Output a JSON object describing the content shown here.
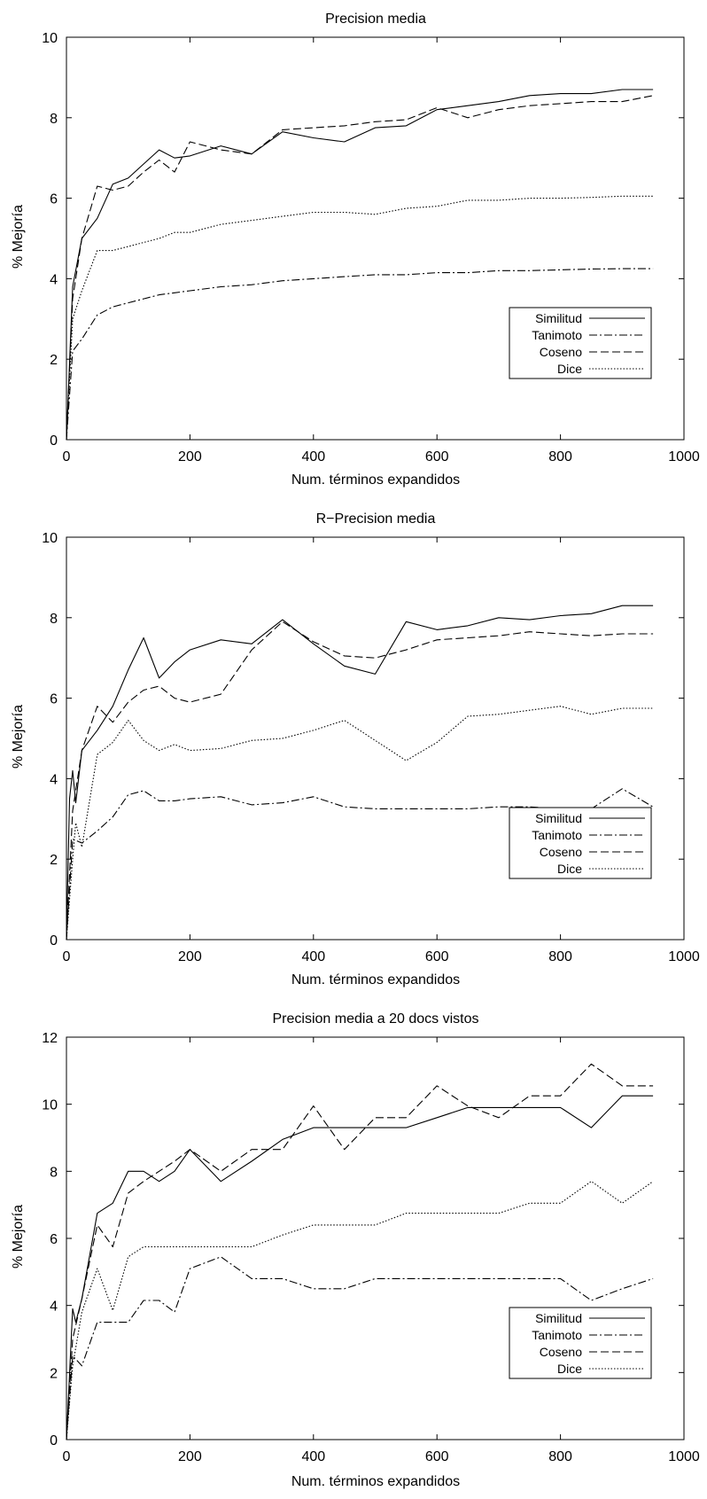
{
  "chart_data": [
    {
      "type": "line",
      "title": "Precision media",
      "xlabel": "Num. términos expandidos",
      "ylabel": "% Mejoría",
      "xlim": [
        0,
        1000
      ],
      "ylim": [
        0,
        10
      ],
      "xticks": [
        0,
        200,
        400,
        600,
        800,
        1000
      ],
      "yticks": [
        0,
        2,
        4,
        6,
        8,
        10
      ],
      "legend_position": "right",
      "series": [
        {
          "name": "Similitud",
          "style": "solid",
          "x": [
            0,
            10,
            25,
            50,
            75,
            100,
            125,
            150,
            175,
            200,
            250,
            300,
            350,
            400,
            450,
            500,
            550,
            600,
            650,
            700,
            750,
            800,
            850,
            900,
            950
          ],
          "y": [
            0,
            3.8,
            5.0,
            5.5,
            6.35,
            6.5,
            6.85,
            7.2,
            7.0,
            7.05,
            7.3,
            7.1,
            7.65,
            7.5,
            7.4,
            7.75,
            7.8,
            8.2,
            8.3,
            8.4,
            8.55,
            8.6,
            8.6,
            8.7,
            8.7
          ]
        },
        {
          "name": "Tanimoto",
          "style": "dashdot",
          "x": [
            0,
            10,
            25,
            50,
            75,
            100,
            125,
            150,
            175,
            200,
            250,
            300,
            350,
            400,
            450,
            500,
            550,
            600,
            650,
            700,
            750,
            800,
            850,
            900,
            950
          ],
          "y": [
            0,
            2.2,
            2.5,
            3.1,
            3.3,
            3.4,
            3.5,
            3.6,
            3.65,
            3.7,
            3.8,
            3.85,
            3.95,
            4.0,
            4.05,
            4.1,
            4.1,
            4.15,
            4.15,
            4.2,
            4.2,
            4.22,
            4.24,
            4.25,
            4.25
          ]
        },
        {
          "name": "Coseno",
          "style": "dashed",
          "x": [
            0,
            10,
            25,
            50,
            75,
            100,
            125,
            150,
            175,
            200,
            250,
            300,
            350,
            400,
            450,
            500,
            550,
            600,
            650,
            700,
            750,
            800,
            850,
            900,
            950
          ],
          "y": [
            0,
            3.5,
            5.0,
            6.3,
            6.2,
            6.3,
            6.65,
            6.95,
            6.65,
            7.4,
            7.2,
            7.1,
            7.7,
            7.75,
            7.8,
            7.9,
            7.95,
            8.25,
            8.0,
            8.2,
            8.3,
            8.35,
            8.4,
            8.4,
            8.55
          ]
        },
        {
          "name": "Dice",
          "style": "dotted",
          "x": [
            0,
            10,
            25,
            50,
            75,
            100,
            125,
            150,
            175,
            200,
            250,
            300,
            350,
            400,
            450,
            500,
            550,
            600,
            650,
            700,
            750,
            800,
            850,
            900,
            950
          ],
          "y": [
            0,
            3.0,
            3.7,
            4.7,
            4.7,
            4.8,
            4.9,
            5.0,
            5.15,
            5.15,
            5.35,
            5.45,
            5.55,
            5.65,
            5.65,
            5.6,
            5.75,
            5.8,
            5.95,
            5.95,
            6.0,
            6.0,
            6.02,
            6.05,
            6.05
          ]
        }
      ]
    },
    {
      "type": "line",
      "title": "R−Precision media",
      "xlabel": "Num. términos expandidos",
      "ylabel": "% Mejoría",
      "xlim": [
        0,
        1000
      ],
      "ylim": [
        0,
        10
      ],
      "xticks": [
        0,
        200,
        400,
        600,
        800,
        1000
      ],
      "yticks": [
        0,
        2,
        4,
        6,
        8,
        10
      ],
      "legend_position": "right",
      "series": [
        {
          "name": "Similitud",
          "style": "solid",
          "x": [
            0,
            5,
            10,
            15,
            25,
            50,
            75,
            100,
            125,
            150,
            175,
            200,
            250,
            300,
            350,
            400,
            450,
            500,
            550,
            600,
            650,
            700,
            750,
            800,
            850,
            900,
            950
          ],
          "y": [
            0,
            3.5,
            4.2,
            3.4,
            4.7,
            5.2,
            5.8,
            6.7,
            7.5,
            6.5,
            6.9,
            7.2,
            7.45,
            7.35,
            7.95,
            7.35,
            6.8,
            6.6,
            7.9,
            7.7,
            7.8,
            8.0,
            7.95,
            8.05,
            8.1,
            8.3,
            8.3
          ]
        },
        {
          "name": "Tanimoto",
          "style": "dashdot",
          "x": [
            0,
            10,
            25,
            50,
            75,
            100,
            125,
            150,
            175,
            200,
            250,
            300,
            350,
            400,
            450,
            500,
            550,
            600,
            650,
            700,
            750,
            800,
            850,
            900,
            950
          ],
          "y": [
            0,
            2.5,
            2.4,
            2.7,
            3.05,
            3.6,
            3.7,
            3.45,
            3.45,
            3.5,
            3.55,
            3.35,
            3.4,
            3.55,
            3.3,
            3.25,
            3.25,
            3.25,
            3.25,
            3.3,
            3.3,
            3.25,
            3.25,
            3.75,
            3.3
          ]
        },
        {
          "name": "Coseno",
          "style": "dashed",
          "x": [
            0,
            10,
            25,
            50,
            75,
            100,
            125,
            150,
            175,
            200,
            250,
            300,
            350,
            400,
            450,
            500,
            550,
            600,
            650,
            700,
            750,
            800,
            850,
            900,
            950
          ],
          "y": [
            0,
            3.2,
            4.7,
            5.8,
            5.4,
            5.9,
            6.2,
            6.3,
            6.0,
            5.9,
            6.1,
            7.2,
            7.9,
            7.4,
            7.05,
            7.0,
            7.2,
            7.45,
            7.5,
            7.55,
            7.65,
            7.6,
            7.55,
            7.6,
            7.6
          ]
        },
        {
          "name": "Dice",
          "style": "dotted",
          "x": [
            0,
            10,
            15,
            25,
            50,
            75,
            100,
            125,
            150,
            175,
            200,
            250,
            300,
            350,
            400,
            450,
            500,
            550,
            600,
            650,
            700,
            750,
            800,
            850,
            900,
            950
          ],
          "y": [
            0,
            2.0,
            2.9,
            2.3,
            4.6,
            4.9,
            5.45,
            4.95,
            4.7,
            4.85,
            4.7,
            4.75,
            4.95,
            5.0,
            5.2,
            5.45,
            4.95,
            4.45,
            4.9,
            5.55,
            5.6,
            5.7,
            5.8,
            5.6,
            5.75,
            5.75
          ]
        }
      ]
    },
    {
      "type": "line",
      "title": "Precision media a 20 docs vistos",
      "xlabel": "Num. términos expandidos",
      "ylabel": "% Mejoría",
      "xlim": [
        0,
        1000
      ],
      "ylim": [
        0,
        12
      ],
      "xticks": [
        0,
        200,
        400,
        600,
        800,
        1000
      ],
      "yticks": [
        0,
        2,
        4,
        6,
        8,
        10,
        12
      ],
      "legend_position": "bottom-right",
      "series": [
        {
          "name": "Similitud",
          "style": "solid",
          "x": [
            0,
            10,
            15,
            25,
            50,
            75,
            100,
            125,
            150,
            175,
            200,
            250,
            300,
            350,
            400,
            450,
            500,
            550,
            600,
            650,
            700,
            750,
            800,
            850,
            900,
            950
          ],
          "y": [
            0,
            3.9,
            3.5,
            4.2,
            6.75,
            7.05,
            8.0,
            8.0,
            7.7,
            8.0,
            8.65,
            7.7,
            8.3,
            8.95,
            9.3,
            9.3,
            9.3,
            9.3,
            9.6,
            9.9,
            9.9,
            9.9,
            9.9,
            9.3,
            10.25,
            10.25
          ]
        },
        {
          "name": "Tanimoto",
          "style": "dashdot",
          "x": [
            0,
            10,
            25,
            50,
            75,
            100,
            125,
            150,
            175,
            200,
            250,
            300,
            350,
            400,
            450,
            500,
            550,
            600,
            650,
            700,
            750,
            800,
            850,
            900,
            950
          ],
          "y": [
            0,
            2.5,
            2.2,
            3.5,
            3.5,
            3.5,
            4.15,
            4.15,
            3.8,
            5.1,
            5.45,
            4.8,
            4.8,
            4.5,
            4.5,
            4.8,
            4.8,
            4.8,
            4.8,
            4.8,
            4.8,
            4.8,
            4.15,
            4.5,
            4.8
          ]
        },
        {
          "name": "Coseno",
          "style": "dashed",
          "x": [
            0,
            10,
            25,
            50,
            75,
            100,
            125,
            150,
            175,
            200,
            250,
            300,
            350,
            400,
            450,
            500,
            550,
            600,
            650,
            700,
            750,
            800,
            850,
            900,
            950
          ],
          "y": [
            0,
            3.0,
            4.2,
            6.4,
            5.75,
            7.35,
            7.7,
            8.0,
            8.3,
            8.65,
            8.0,
            8.65,
            8.65,
            9.95,
            8.65,
            9.6,
            9.6,
            10.55,
            9.95,
            9.6,
            10.25,
            10.25,
            11.2,
            10.55,
            10.55
          ]
        },
        {
          "name": "Dice",
          "style": "dotted",
          "x": [
            0,
            10,
            25,
            50,
            75,
            100,
            125,
            150,
            175,
            200,
            250,
            300,
            350,
            400,
            450,
            500,
            550,
            600,
            650,
            700,
            750,
            800,
            850,
            900,
            950
          ],
          "y": [
            0,
            2.2,
            3.8,
            5.1,
            3.85,
            5.45,
            5.75,
            5.75,
            5.75,
            5.75,
            5.75,
            5.75,
            6.1,
            6.4,
            6.4,
            6.4,
            6.75,
            6.75,
            6.75,
            6.75,
            7.05,
            7.05,
            7.7,
            7.05,
            7.7
          ]
        }
      ]
    }
  ]
}
